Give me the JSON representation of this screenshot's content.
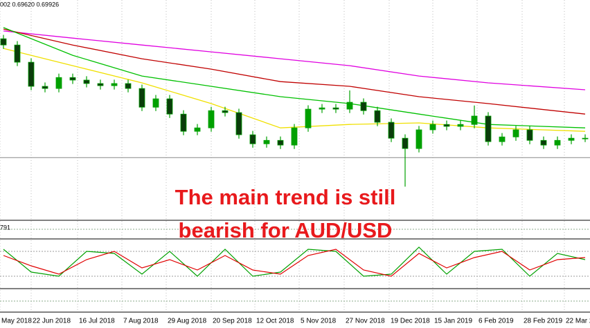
{
  "chart_data": {
    "type": "candlestick",
    "info_text": "002 0.69620 0.69926",
    "indicator_label": "791",
    "annotation": [
      "The main trend is still",
      "bearish for AUD/USD"
    ],
    "xlim": [
      -0.25,
      42.35
    ],
    "ylim": [
      0.672,
      0.774
    ],
    "xticks": [
      {
        "value": -0.25,
        "label": "May 2018"
      },
      {
        "value": 2,
        "label": "22 Jun 2018"
      },
      {
        "value": 5.35,
        "label": "16 Jul 2018"
      },
      {
        "value": 8.55,
        "label": "7 Aug 2018"
      },
      {
        "value": 11.75,
        "label": "29 Aug 2018"
      },
      {
        "value": 15,
        "label": "20 Sep 2018"
      },
      {
        "value": 18.15,
        "label": "12 Oct 2018"
      },
      {
        "value": 21.35,
        "label": "5 Nov 2018"
      },
      {
        "value": 24.6,
        "label": "27 Nov 2018"
      },
      {
        "value": 27.85,
        "label": "19 Dec 2018"
      },
      {
        "value": 31,
        "label": "15 Jan 2019"
      },
      {
        "value": 34.2,
        "label": "6 Feb 2019"
      },
      {
        "value": 37.45,
        "label": "28 Feb 2019"
      },
      {
        "value": 40.5,
        "label": "22 Mar 2"
      }
    ],
    "hline": 0.7008,
    "up_color": "#00a000",
    "down_color": "#0b3d0b",
    "open": [
      0.756,
      0.7531,
      0.7451,
      0.7339,
      0.7329,
      0.738,
      0.7368,
      0.7352,
      0.7342,
      0.7352,
      0.7329,
      0.7242,
      0.7281,
      0.721,
      0.713,
      0.7146,
      0.7226,
      0.7217,
      0.7114,
      0.7072,
      0.7088,
      0.7066,
      0.7146,
      0.7233,
      0.7239,
      0.7233,
      0.7265,
      0.7226,
      0.7172,
      0.7098,
      0.705,
      0.7137,
      0.7162,
      0.7153,
      0.7162,
      0.7201,
      0.7082,
      0.7104,
      0.7137,
      0.7088,
      0.7066,
      0.7088,
      0.7098
    ],
    "high": [
      0.7578,
      0.7549,
      0.7469,
      0.7357,
      0.7398,
      0.7398,
      0.7386,
      0.737,
      0.737,
      0.737,
      0.7347,
      0.7299,
      0.7299,
      0.7228,
      0.7164,
      0.7244,
      0.7244,
      0.7235,
      0.7132,
      0.7106,
      0.7106,
      0.7164,
      0.7251,
      0.7257,
      0.7257,
      0.732,
      0.7283,
      0.7244,
      0.719,
      0.7116,
      0.7155,
      0.718,
      0.718,
      0.718,
      0.725,
      0.7219,
      0.7122,
      0.7155,
      0.7155,
      0.7106,
      0.7106,
      0.7116,
      0.7116
    ],
    "low": [
      0.7513,
      0.7433,
      0.7321,
      0.7311,
      0.7311,
      0.735,
      0.7334,
      0.7324,
      0.7324,
      0.7311,
      0.7224,
      0.7224,
      0.7192,
      0.7112,
      0.7112,
      0.7128,
      0.7199,
      0.7096,
      0.7054,
      0.7054,
      0.7048,
      0.7048,
      0.7128,
      0.7215,
      0.7215,
      0.7215,
      0.7208,
      0.7154,
      0.708,
      0.6873,
      0.7032,
      0.7119,
      0.7135,
      0.7135,
      0.7144,
      0.7064,
      0.7064,
      0.7086,
      0.707,
      0.7048,
      0.7048,
      0.707,
      0.708
    ],
    "close": [
      0.7531,
      0.7451,
      0.7339,
      0.7329,
      0.738,
      0.7368,
      0.7352,
      0.7342,
      0.7352,
      0.7329,
      0.7242,
      0.7281,
      0.721,
      0.713,
      0.7146,
      0.7226,
      0.7217,
      0.7114,
      0.7072,
      0.7088,
      0.7066,
      0.7146,
      0.7233,
      0.7239,
      0.7233,
      0.7265,
      0.7226,
      0.7172,
      0.7098,
      0.705,
      0.7137,
      0.7162,
      0.7153,
      0.7162,
      0.7201,
      0.7082,
      0.7104,
      0.7137,
      0.7088,
      0.7066,
      0.7088,
      0.7098,
      0.7098
    ],
    "moving_averages": {
      "x": [
        0,
        5,
        10,
        15,
        20,
        25,
        30,
        35,
        42
      ],
      "series": [
        {
          "color": "#e000e0",
          "values": [
            0.7596,
            0.7563,
            0.7531,
            0.7499,
            0.7467,
            0.7435,
            0.7387,
            0.7355,
            0.7323
          ]
        },
        {
          "color": "#c00000",
          "values": [
            0.7605,
            0.7531,
            0.7467,
            0.7419,
            0.7361,
            0.7339,
            0.7291,
            0.7259,
            0.721
          ]
        },
        {
          "color": "#00c000",
          "values": [
            0.7612,
            0.7483,
            0.7387,
            0.7339,
            0.7291,
            0.7259,
            0.721,
            0.7162,
            0.7146
          ]
        },
        {
          "color": "#f0e000",
          "values": [
            0.7515,
            0.7435,
            0.7355,
            0.7259,
            0.7146,
            0.7162,
            0.7169,
            0.7146,
            0.713
          ]
        }
      ]
    },
    "stochastic": {
      "ylim": [
        0,
        100
      ],
      "levels": [
        20,
        80
      ],
      "x": [
        0,
        2,
        4,
        6,
        8,
        10,
        12,
        14,
        16,
        18,
        20,
        22,
        24,
        26,
        28,
        30,
        32,
        34,
        36,
        38,
        40,
        42
      ],
      "series": [
        {
          "color": "#00a000",
          "values": [
            85,
            30,
            20,
            80,
            75,
            25,
            80,
            20,
            85,
            20,
            30,
            85,
            80,
            20,
            25,
            90,
            25,
            80,
            85,
            20,
            75,
            60
          ]
        },
        {
          "color": "#e00000",
          "values": [
            70,
            45,
            25,
            60,
            80,
            40,
            60,
            35,
            70,
            35,
            25,
            70,
            85,
            35,
            20,
            75,
            40,
            65,
            80,
            35,
            60,
            65
          ]
        }
      ]
    }
  }
}
